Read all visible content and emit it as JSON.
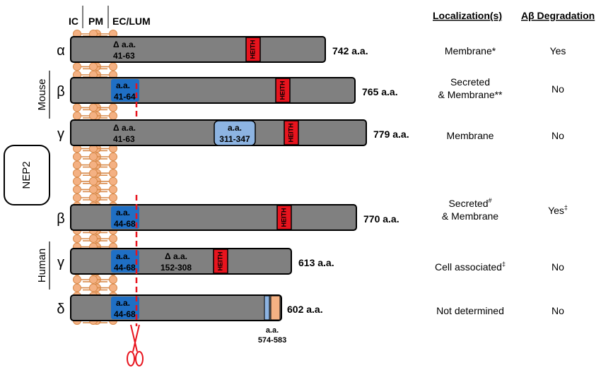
{
  "headers": {
    "ic": "IC",
    "pm": "PM",
    "ec": "EC/LUM",
    "localization": "Localization(s)",
    "degradation": "Aβ Degradation"
  },
  "side_labels": {
    "nep2": "NEP2",
    "mouse": "Mouse",
    "human": "Human"
  },
  "motif": "HEITH",
  "isoforms": [
    {
      "greek": "α",
      "length": "742 a.a.",
      "deletion": [
        "Δ a.a.",
        "41-63"
      ],
      "localization": [
        "Membrane*"
      ],
      "degradation": "Yes"
    },
    {
      "greek": "β",
      "length": "765 a.a.",
      "insert": [
        "a.a.",
        "41-64"
      ],
      "localization": [
        "Secreted",
        "& Membrane**"
      ],
      "degradation": "No"
    },
    {
      "greek": "γ",
      "length": "779 a.a.",
      "deletion": [
        "Δ a.a.",
        "41-63"
      ],
      "insert2": [
        "a.a.",
        "311-347"
      ],
      "localization": [
        "Membrane"
      ],
      "degradation": "No"
    },
    {
      "greek": "β",
      "length": "770 a.a.",
      "insert": [
        "a.a.",
        "44-68"
      ],
      "localization": [
        "Secreted#",
        "& Membrane"
      ],
      "degradation": "Yes‡"
    },
    {
      "greek": "γ",
      "length": "613 a.a.",
      "insert": [
        "a.a.",
        "44-68"
      ],
      "deletion2": [
        "Δ a.a.",
        "152-308"
      ],
      "localization": [
        "Cell associated‡"
      ],
      "degradation": "No"
    },
    {
      "greek": "δ",
      "length": "602 a.a.",
      "insert": [
        "a.a.",
        "44-68"
      ],
      "extra": [
        "a.a.",
        "574-583"
      ],
      "localization": [
        "Not determined"
      ],
      "degradation": "No"
    }
  ],
  "colors": {
    "bar": "#808080",
    "insert": "#1f6fc4",
    "insert2": "#8db4e2",
    "motif": "#e8141e",
    "cleavage": "#e8141e",
    "lipid": "#f4b183",
    "lipid_stroke": "#d88a4a",
    "extra_blue": "#8db4e2",
    "extra_orange": "#f4b183"
  },
  "icons": [
    "scissors-icon"
  ]
}
